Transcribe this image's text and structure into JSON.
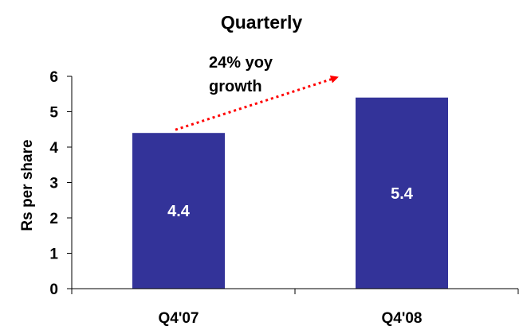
{
  "chart_data": {
    "type": "bar",
    "title": "Quarterly",
    "xlabel": "",
    "ylabel": "Rs per share",
    "categories": [
      "Q4'07",
      "Q4'08"
    ],
    "values": [
      4.4,
      5.4
    ],
    "data_labels": [
      "4.4",
      "5.4"
    ],
    "ylim": [
      0,
      6
    ],
    "yticks": [
      "0",
      "1",
      "2",
      "3",
      "4",
      "5",
      "6"
    ],
    "grid": false,
    "legend": "none",
    "bar_color": "#333399",
    "annotation": {
      "lines": [
        "24% yoy",
        "growth"
      ],
      "arrow_color": "#ff0000",
      "arrow_style": "dotted",
      "from": {
        "category": "Q4'07",
        "value": 4.4
      },
      "to": {
        "category": "Q4'08",
        "value": 6.1
      }
    }
  }
}
